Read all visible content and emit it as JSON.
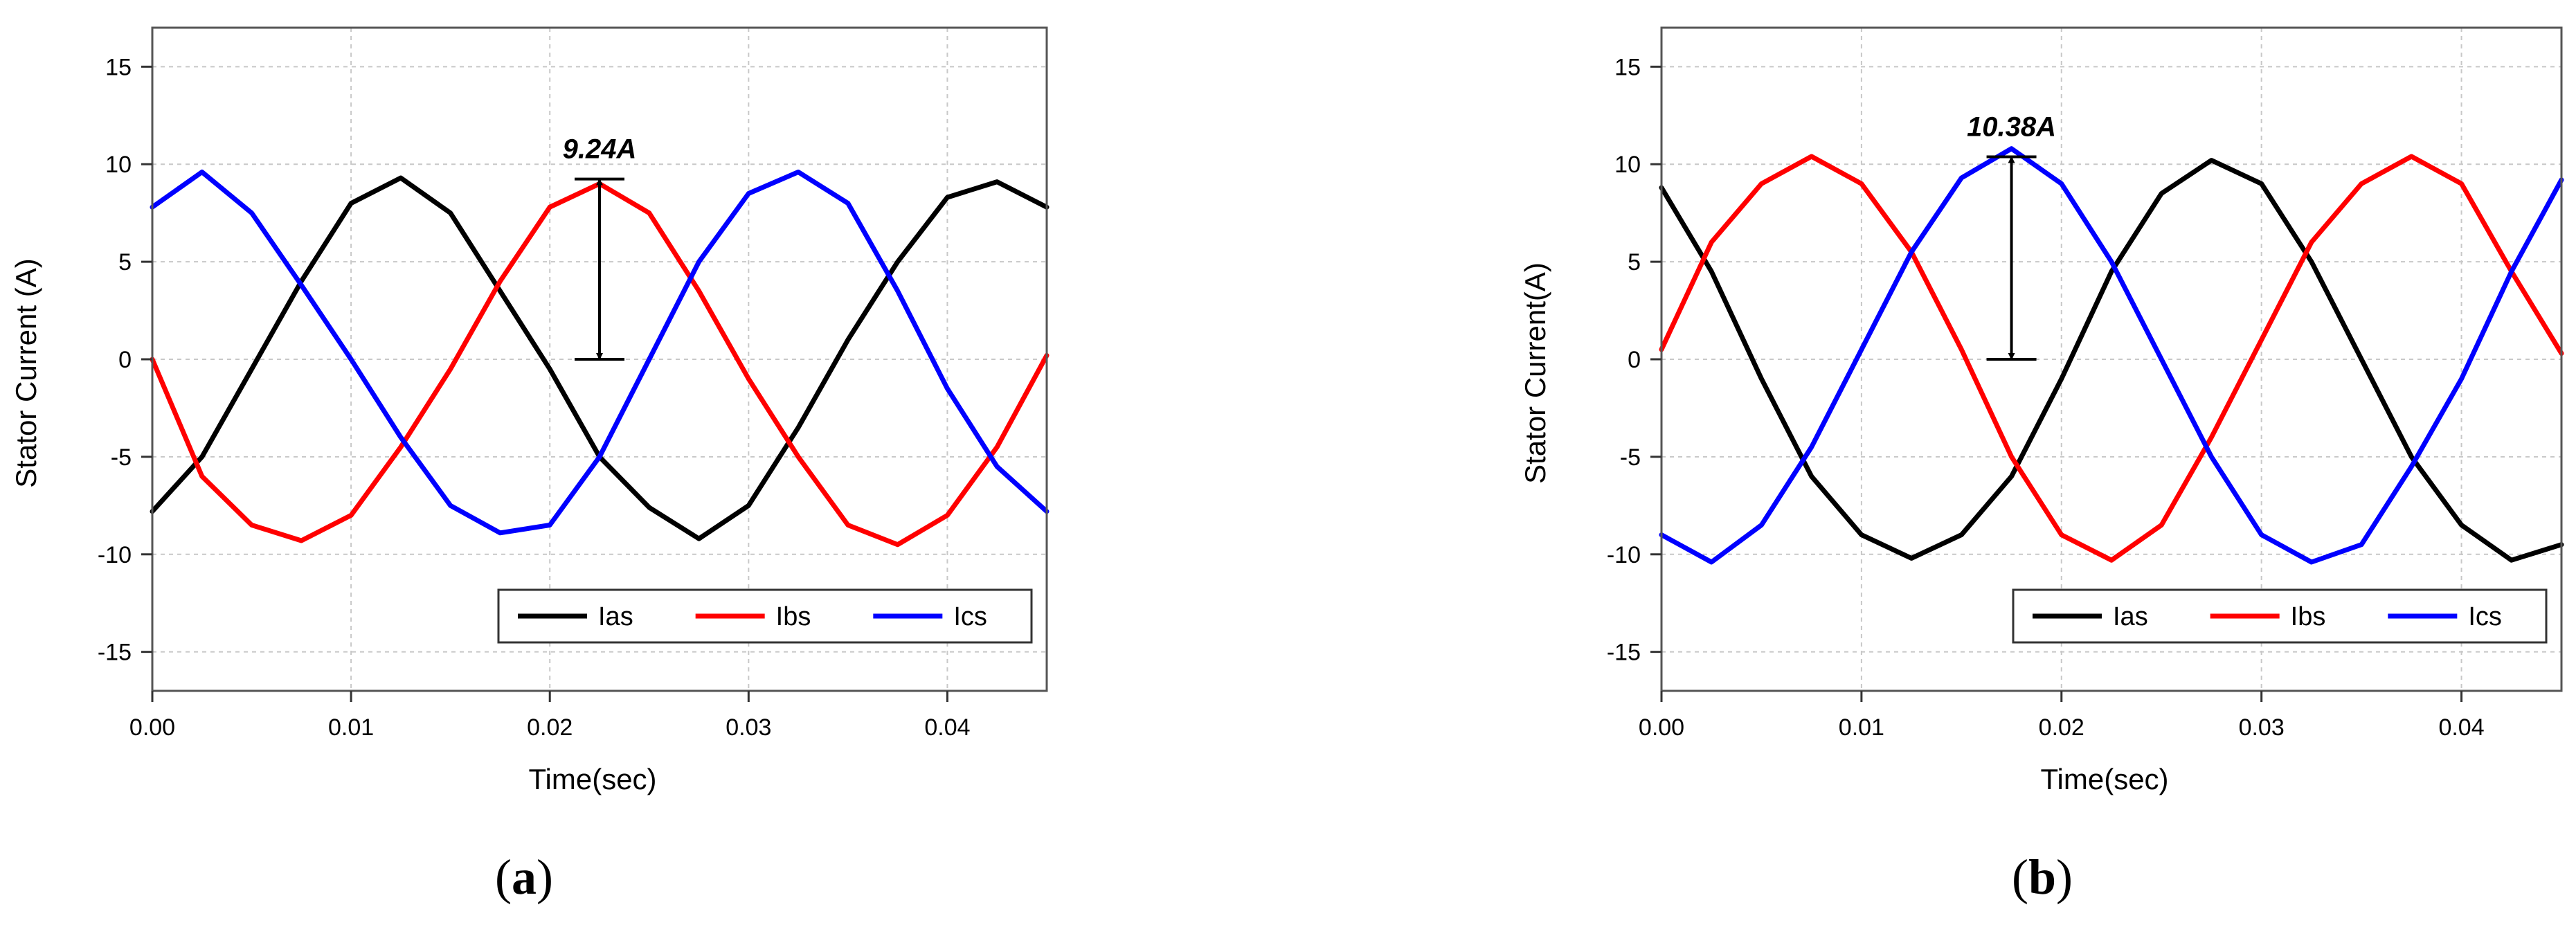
{
  "chart_data": [
    {
      "panel": "a",
      "caption": "a",
      "type": "line",
      "xlabel": "Time(sec)",
      "ylabel": "Stator Current (A)",
      "xlim": [
        0,
        0.045
      ],
      "ylim": [
        -17,
        17
      ],
      "xticks": [
        "0.00",
        "0.01",
        "0.02",
        "0.03",
        "0.04"
      ],
      "xtick_values": [
        0,
        0.01,
        0.02,
        0.03,
        0.04
      ],
      "yticks": [
        "-15",
        "-10",
        "-5",
        "0",
        "5",
        "10",
        "15"
      ],
      "ytick_values": [
        -15,
        -10,
        -5,
        0,
        5,
        10,
        15
      ],
      "grid": true,
      "legend_position": "bottom-right",
      "annotation": {
        "text": "9.24A",
        "x": 0.0225,
        "y_from": 0,
        "y_to": 9.24
      },
      "series": [
        {
          "name": "Ias",
          "color": "#000000",
          "x": [
            0,
            0.0025,
            0.005,
            0.0075,
            0.01,
            0.0125,
            0.015,
            0.0175,
            0.02,
            0.0225,
            0.025,
            0.0275,
            0.03,
            0.0325,
            0.035,
            0.0375,
            0.04,
            0.0425,
            0.045
          ],
          "y": [
            -7.8,
            -5.0,
            -0.5,
            4.0,
            8.0,
            9.3,
            7.5,
            3.5,
            -0.5,
            -5.0,
            -7.6,
            -9.2,
            -7.5,
            -3.5,
            1.0,
            5.0,
            8.3,
            9.1,
            7.8
          ]
        },
        {
          "name": "Ibs",
          "color": "#ff0000",
          "x": [
            0,
            0.0025,
            0.005,
            0.0075,
            0.01,
            0.0125,
            0.015,
            0.0175,
            0.02,
            0.0225,
            0.025,
            0.0275,
            0.03,
            0.0325,
            0.035,
            0.0375,
            0.04,
            0.0425,
            0.045
          ],
          "y": [
            0.0,
            -6.0,
            -8.5,
            -9.3,
            -8.0,
            -4.5,
            -0.5,
            4.0,
            7.8,
            9.0,
            7.5,
            3.5,
            -1.0,
            -5.0,
            -8.5,
            -9.5,
            -8.0,
            -4.5,
            0.2
          ]
        },
        {
          "name": "Ics",
          "color": "#0000ff",
          "x": [
            0,
            0.0025,
            0.005,
            0.0075,
            0.01,
            0.0125,
            0.015,
            0.0175,
            0.02,
            0.0225,
            0.025,
            0.0275,
            0.03,
            0.0325,
            0.035,
            0.0375,
            0.04,
            0.0425,
            0.045
          ],
          "y": [
            7.8,
            9.6,
            7.5,
            3.8,
            0.0,
            -4.0,
            -7.5,
            -8.9,
            -8.5,
            -5.0,
            0.0,
            5.0,
            8.5,
            9.6,
            8.0,
            3.5,
            -1.5,
            -5.5,
            -7.8
          ]
        }
      ]
    },
    {
      "panel": "b",
      "caption": "b",
      "type": "line",
      "xlabel": "Time(sec)",
      "ylabel": "Stator Current(A)",
      "xlim": [
        0,
        0.045
      ],
      "ylim": [
        -17,
        17
      ],
      "xticks": [
        "0.00",
        "0.01",
        "0.02",
        "0.03",
        "0.04"
      ],
      "xtick_values": [
        0,
        0.01,
        0.02,
        0.03,
        0.04
      ],
      "yticks": [
        "-15",
        "-10",
        "-5",
        "0",
        "5",
        "10",
        "15"
      ],
      "ytick_values": [
        -15,
        -10,
        -5,
        0,
        5,
        10,
        15
      ],
      "grid": true,
      "legend_position": "bottom-right",
      "annotation": {
        "text": "10.38A",
        "x": 0.0175,
        "y_from": 0,
        "y_to": 10.38
      },
      "series": [
        {
          "name": "Ias",
          "color": "#000000",
          "x": [
            0,
            0.0025,
            0.005,
            0.0075,
            0.01,
            0.0125,
            0.015,
            0.0175,
            0.02,
            0.0225,
            0.025,
            0.0275,
            0.03,
            0.0325,
            0.035,
            0.0375,
            0.04,
            0.0425,
            0.045
          ],
          "y": [
            8.8,
            4.5,
            -1.0,
            -6.0,
            -9.0,
            -10.2,
            -9.0,
            -6.0,
            -1.0,
            4.5,
            8.5,
            10.2,
            9.0,
            5.0,
            0.0,
            -5.0,
            -8.5,
            -10.3,
            -9.5
          ]
        },
        {
          "name": "Ibs",
          "color": "#ff0000",
          "x": [
            0,
            0.0025,
            0.005,
            0.0075,
            0.01,
            0.0125,
            0.015,
            0.0175,
            0.02,
            0.0225,
            0.025,
            0.0275,
            0.03,
            0.0325,
            0.035,
            0.0375,
            0.04,
            0.0425,
            0.045
          ],
          "y": [
            0.5,
            6.0,
            9.0,
            10.4,
            9.0,
            5.5,
            0.5,
            -5.0,
            -9.0,
            -10.3,
            -8.5,
            -4.0,
            1.0,
            6.0,
            9.0,
            10.4,
            9.0,
            4.5,
            0.3
          ]
        },
        {
          "name": "Ics",
          "color": "#0000ff",
          "x": [
            0,
            0.0025,
            0.005,
            0.0075,
            0.01,
            0.0125,
            0.015,
            0.0175,
            0.02,
            0.0225,
            0.025,
            0.0275,
            0.03,
            0.0325,
            0.035,
            0.0375,
            0.04,
            0.0425,
            0.045
          ],
          "y": [
            -9.0,
            -10.4,
            -8.5,
            -4.5,
            0.5,
            5.5,
            9.3,
            10.8,
            9.0,
            5.0,
            0.0,
            -5.0,
            -9.0,
            -10.4,
            -9.5,
            -5.5,
            -1.0,
            4.5,
            9.2
          ]
        }
      ]
    }
  ]
}
